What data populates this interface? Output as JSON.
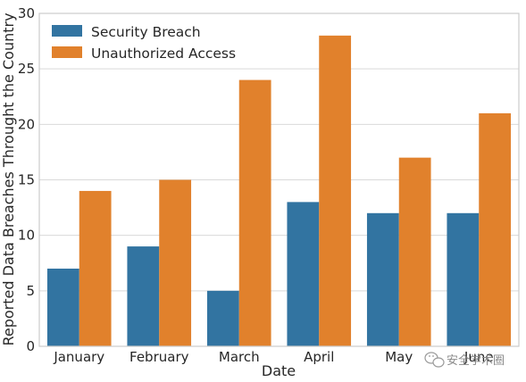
{
  "chart_data": {
    "type": "bar",
    "categories": [
      "January",
      "February",
      "March",
      "April",
      "May",
      "June"
    ],
    "series": [
      {
        "name": "Security Breach",
        "color": "#3274a1",
        "values": [
          7,
          9,
          5,
          13,
          12,
          12
        ]
      },
      {
        "name": "Unauthorized Access",
        "color": "#e1812c",
        "values": [
          14,
          15,
          24,
          28,
          17,
          21
        ]
      }
    ],
    "xlabel": "Date",
    "ylabel": "Reported Data Breaches Throught the Country",
    "ylim": [
      0,
      30
    ],
    "yticks": [
      0,
      5,
      10,
      15,
      20,
      25,
      30
    ],
    "grid": true,
    "legend_position": "top-left"
  },
  "watermark": {
    "text": "安全学术圈",
    "icon": "wechat-icon"
  }
}
